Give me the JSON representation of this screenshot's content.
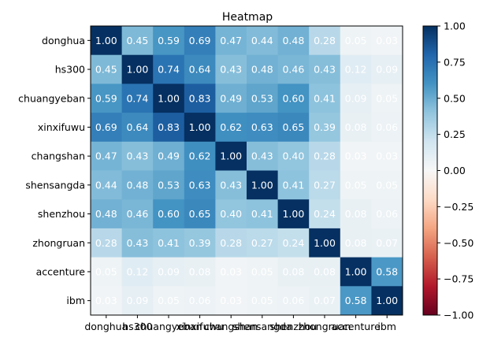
{
  "chart_data": {
    "type": "heatmap",
    "title": "Heatmap",
    "xlabel": "",
    "ylabel": "",
    "categories": [
      "donghua",
      "hs300",
      "chuangyeban",
      "xinxifuwu",
      "changshan",
      "shensangda",
      "shenzhou",
      "zhongruan",
      "accenture",
      "ibm"
    ],
    "values": [
      [
        1.0,
        0.45,
        0.59,
        0.69,
        0.47,
        0.44,
        0.48,
        0.28,
        0.05,
        0.03
      ],
      [
        0.45,
        1.0,
        0.74,
        0.64,
        0.43,
        0.48,
        0.46,
        0.43,
        0.12,
        0.09
      ],
      [
        0.59,
        0.74,
        1.0,
        0.83,
        0.49,
        0.53,
        0.6,
        0.41,
        0.09,
        0.05
      ],
      [
        0.69,
        0.64,
        0.83,
        1.0,
        0.62,
        0.63,
        0.65,
        0.39,
        0.08,
        0.06
      ],
      [
        0.47,
        0.43,
        0.49,
        0.62,
        1.0,
        0.43,
        0.4,
        0.28,
        0.03,
        0.03
      ],
      [
        0.44,
        0.48,
        0.53,
        0.63,
        0.43,
        1.0,
        0.41,
        0.27,
        0.05,
        0.05
      ],
      [
        0.48,
        0.46,
        0.6,
        0.65,
        0.4,
        0.41,
        1.0,
        0.24,
        0.08,
        0.06
      ],
      [
        0.28,
        0.43,
        0.41,
        0.39,
        0.28,
        0.27,
        0.24,
        1.0,
        0.08,
        0.07
      ],
      [
        0.05,
        0.12,
        0.09,
        0.08,
        0.03,
        0.05,
        0.08,
        0.08,
        1.0,
        0.58
      ],
      [
        0.03,
        0.09,
        0.05,
        0.06,
        0.03,
        0.05,
        0.06,
        0.07,
        0.58,
        1.0
      ]
    ],
    "value_format": "0.00",
    "colormap": "RdBu",
    "vmin": -1.0,
    "vmax": 1.0,
    "colorbar_ticks": [
      "-1.00",
      "-0.75",
      "-0.50",
      "-0.25",
      "0.00",
      "0.25",
      "0.50",
      "0.75",
      "1.00"
    ],
    "cell_text_color": "#ffffff",
    "grid": false
  }
}
